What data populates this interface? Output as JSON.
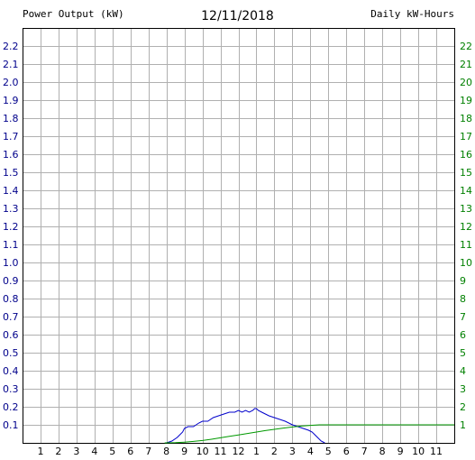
{
  "chart_data": {
    "type": "line",
    "title": "12/11/2018",
    "left_axis_label": "Power Output (kW)",
    "right_axis_label": "Daily kW-Hours",
    "left_ylim": [
      0,
      2.3
    ],
    "right_ylim": [
      0,
      23
    ],
    "xlim": [
      0,
      24
    ],
    "grid": true,
    "colors": {
      "left_axis": "#00008b",
      "right_axis": "#008000",
      "grid": "#b0b0b0"
    },
    "left_ticks": [
      "0.1",
      "0.2",
      "0.3",
      "0.4",
      "0.5",
      "0.6",
      "0.7",
      "0.8",
      "0.9",
      "1.0",
      "1.1",
      "1.2",
      "1.3",
      "1.4",
      "1.5",
      "1.6",
      "1.7",
      "1.8",
      "1.9",
      "2.0",
      "2.1",
      "2.2"
    ],
    "right_ticks": [
      "1",
      "2",
      "3",
      "4",
      "5",
      "6",
      "7",
      "8",
      "9",
      "10",
      "11",
      "12",
      "13",
      "14",
      "15",
      "16",
      "17",
      "18",
      "19",
      "20",
      "21",
      "22"
    ],
    "x_ticks": [
      "1",
      "2",
      "3",
      "4",
      "5",
      "6",
      "7",
      "8",
      "9",
      "10",
      "11",
      "12",
      "1",
      "2",
      "3",
      "4",
      "5",
      "6",
      "7",
      "8",
      "9",
      "10",
      "11"
    ],
    "series": [
      {
        "axis": "left",
        "color": "#0000cc",
        "x": [
          8.0,
          8.3,
          8.6,
          8.9,
          9.0,
          9.2,
          9.5,
          9.8,
          10.0,
          10.3,
          10.6,
          10.9,
          11.2,
          11.5,
          11.8,
          12.0,
          12.2,
          12.4,
          12.6,
          12.8,
          12.9,
          13.0,
          13.1,
          13.3,
          13.5,
          13.7,
          14.0,
          14.3,
          14.6,
          15.0,
          15.3,
          15.6,
          15.9,
          16.1,
          16.3,
          16.4,
          16.6,
          16.8
        ],
        "y": [
          0.0,
          0.01,
          0.03,
          0.06,
          0.08,
          0.09,
          0.09,
          0.11,
          0.12,
          0.12,
          0.14,
          0.15,
          0.16,
          0.17,
          0.17,
          0.18,
          0.17,
          0.18,
          0.17,
          0.18,
          0.19,
          0.19,
          0.18,
          0.17,
          0.16,
          0.15,
          0.14,
          0.13,
          0.12,
          0.1,
          0.09,
          0.08,
          0.07,
          0.06,
          0.04,
          0.03,
          0.01,
          0.0
        ]
      },
      {
        "axis": "right",
        "color": "#009900",
        "x": [
          7.9,
          8.5,
          9.0,
          9.5,
          10.0,
          10.5,
          11.0,
          11.5,
          12.0,
          12.5,
          13.0,
          13.5,
          14.0,
          14.5,
          15.0,
          15.5,
          16.0,
          16.5,
          17.0,
          24.0
        ],
        "y": [
          0.0,
          0.01,
          0.04,
          0.08,
          0.13,
          0.2,
          0.28,
          0.36,
          0.44,
          0.52,
          0.6,
          0.68,
          0.75,
          0.82,
          0.88,
          0.93,
          0.97,
          1.0,
          1.0,
          1.0
        ]
      }
    ]
  }
}
